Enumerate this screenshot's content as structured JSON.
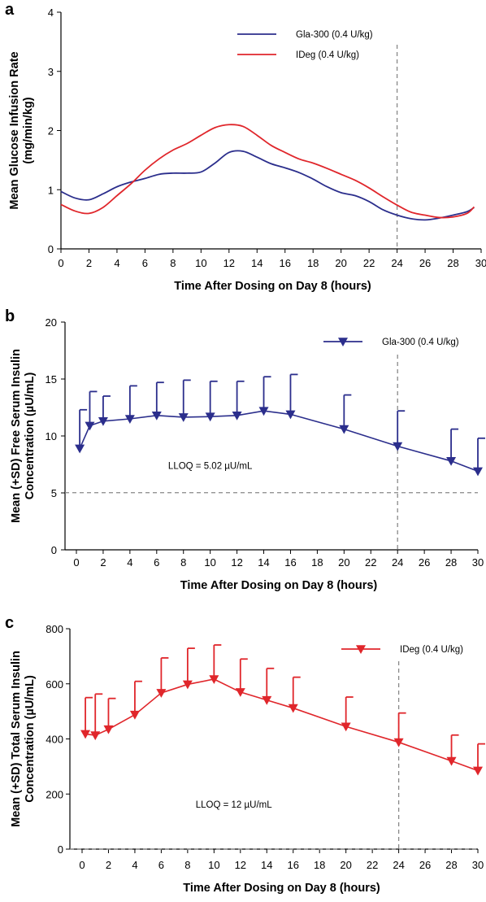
{
  "chart_data": [
    {
      "panel": "a",
      "type": "line",
      "xlabel": "Time After Dosing on Day 8 (hours)",
      "ylabel": [
        "Mean Glucose Infusion Rate",
        "(mg/min/kg)"
      ],
      "xlim": [
        0,
        30
      ],
      "ylim": [
        0,
        4
      ],
      "xticks": [
        0,
        2,
        4,
        6,
        8,
        10,
        12,
        14,
        16,
        18,
        20,
        22,
        24,
        26,
        28,
        30
      ],
      "yticks": [
        0,
        1,
        2,
        3,
        4
      ],
      "legend_position": "top-right",
      "vline": 24,
      "series": [
        {
          "name": "Gla-300 (0.4 U/kg)",
          "color": "#2b2e8c",
          "x": [
            0,
            1,
            2,
            3,
            4,
            5,
            6,
            7,
            8,
            9,
            10,
            11,
            12,
            13,
            14,
            15,
            16,
            17,
            18,
            19,
            20,
            21,
            22,
            23,
            24,
            25,
            26,
            27,
            28,
            29,
            29.5
          ],
          "y": [
            0.97,
            0.86,
            0.83,
            0.93,
            1.05,
            1.13,
            1.19,
            1.26,
            1.28,
            1.28,
            1.3,
            1.45,
            1.63,
            1.65,
            1.55,
            1.44,
            1.37,
            1.29,
            1.18,
            1.05,
            0.95,
            0.9,
            0.8,
            0.66,
            0.57,
            0.51,
            0.49,
            0.52,
            0.57,
            0.63,
            0.7
          ]
        },
        {
          "name": "IDeg (0.4 U/kg)",
          "color": "#e0262b",
          "x": [
            0,
            1,
            2,
            3,
            4,
            5,
            6,
            7,
            8,
            9,
            10,
            11,
            12,
            13,
            14,
            15,
            16,
            17,
            18,
            19,
            20,
            21,
            22,
            23,
            24,
            25,
            26,
            27,
            28,
            29,
            29.5
          ],
          "y": [
            0.75,
            0.64,
            0.6,
            0.7,
            0.9,
            1.1,
            1.33,
            1.52,
            1.67,
            1.78,
            1.92,
            2.05,
            2.1,
            2.07,
            1.92,
            1.75,
            1.63,
            1.52,
            1.45,
            1.36,
            1.26,
            1.16,
            1.03,
            0.88,
            0.74,
            0.62,
            0.57,
            0.53,
            0.54,
            0.6,
            0.71
          ]
        }
      ]
    },
    {
      "panel": "b",
      "type": "line",
      "xlabel": "Time After Dosing on Day 8 (hours)",
      "ylabel": [
        "Mean (+SD) Free Serum Insulin",
        "Concentration (µU/mL)"
      ],
      "xlim": [
        0,
        30
      ],
      "ylim": [
        0,
        20
      ],
      "xticks": [
        0,
        2,
        4,
        6,
        8,
        10,
        12,
        14,
        16,
        18,
        20,
        22,
        24,
        26,
        28,
        30
      ],
      "yticks": [
        0,
        5,
        10,
        15,
        20
      ],
      "legend_position": "top-right",
      "vline": 24,
      "hline": 5.02,
      "annotation": "LLOQ = 5.02 µU/mL",
      "series": [
        {
          "name": "Gla-300 (0.4 U/kg)",
          "color": "#2b2e8c",
          "x": [
            0.25,
            1,
            2,
            4,
            6,
            8,
            10,
            12,
            14,
            16,
            20,
            24,
            28,
            30
          ],
          "y": [
            8.9,
            10.9,
            11.3,
            11.5,
            11.8,
            11.65,
            11.7,
            11.8,
            12.2,
            11.9,
            10.6,
            9.1,
            7.8,
            6.9
          ],
          "sd_upper": [
            12.3,
            13.9,
            13.5,
            14.4,
            14.7,
            14.9,
            14.8,
            14.8,
            15.2,
            15.4,
            13.6,
            12.2,
            10.6,
            9.8
          ]
        }
      ]
    },
    {
      "panel": "c",
      "type": "line",
      "xlabel": "Time After Dosing on Day 8 (hours)",
      "ylabel": [
        "Mean (+SD) Total Serum Insulin",
        "Concentration (µU/mL)"
      ],
      "xlim": [
        0,
        30
      ],
      "ylim": [
        0,
        800
      ],
      "xticks": [
        0,
        2,
        4,
        6,
        8,
        10,
        12,
        14,
        16,
        18,
        20,
        22,
        24,
        26,
        28,
        30
      ],
      "yticks": [
        0,
        200,
        400,
        600,
        800
      ],
      "legend_position": "top-right",
      "vline": 24,
      "hline": 0,
      "annotation": "LLOQ = 12 µU/mL",
      "series": [
        {
          "name": "IDeg (0.4 U/kg)",
          "color": "#e0262b",
          "x": [
            0.25,
            1,
            2,
            4,
            6,
            8,
            10,
            12,
            14,
            16,
            20,
            24,
            28,
            30
          ],
          "y": [
            418,
            413,
            435,
            488,
            567,
            598,
            617,
            570,
            541,
            512,
            445,
            388,
            320,
            285
          ],
          "sd_upper": [
            550,
            563,
            547,
            609,
            694,
            729,
            741,
            690,
            656,
            624,
            552,
            494,
            414,
            382
          ]
        }
      ]
    }
  ]
}
